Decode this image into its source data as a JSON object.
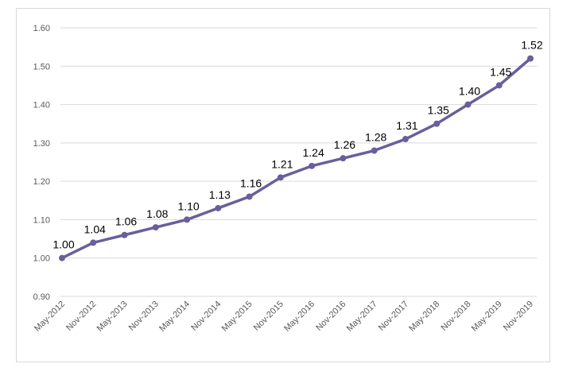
{
  "chart_data": {
    "type": "line",
    "categories": [
      "May-2012",
      "Nov-2012",
      "May-2013",
      "Nov-2013",
      "May-2014",
      "Nov-2014",
      "May-2015",
      "Nov-2015",
      "May-2016",
      "Nov-2016",
      "May-2017",
      "Nov-2017",
      "May-2018",
      "Nov-2018",
      "May-2019",
      "Nov-2019"
    ],
    "values": [
      1.0,
      1.04,
      1.06,
      1.08,
      1.1,
      1.13,
      1.16,
      1.21,
      1.24,
      1.26,
      1.28,
      1.31,
      1.35,
      1.4,
      1.45,
      1.52
    ],
    "data_labels": [
      "1.00",
      "1.04",
      "1.06",
      "1.08",
      "1.10",
      "1.13",
      "1.16",
      "1.21",
      "1.24",
      "1.26",
      "1.28",
      "1.31",
      "1.35",
      "1.40",
      "1.45",
      "1.52"
    ],
    "y_ticks": [
      "0.90",
      "1.00",
      "1.10",
      "1.20",
      "1.30",
      "1.40",
      "1.50",
      "1.60"
    ],
    "ylim": [
      0.9,
      1.6
    ],
    "grid": true,
    "legend": "none",
    "line_color": "#6b5e9b",
    "grid_color": "#d9d9d9",
    "title": "",
    "xlabel": "",
    "ylabel": ""
  }
}
